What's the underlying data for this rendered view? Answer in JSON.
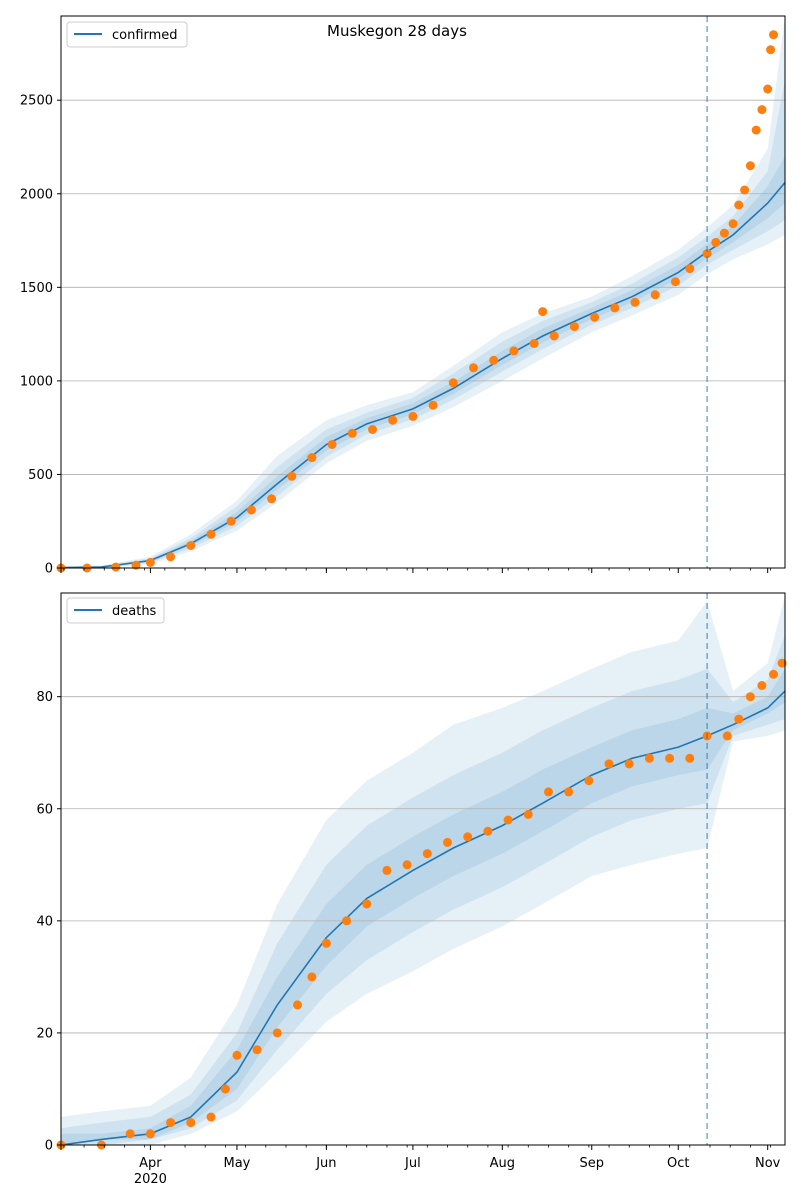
{
  "chart_data": [
    {
      "type": "line",
      "title": "Muskegon 28 days",
      "legend": {
        "label": "confirmed",
        "placement": "top-left"
      },
      "x_type": "date",
      "xlim": [
        "2020-03-01",
        "2020-11-07"
      ],
      "ylim": [
        0,
        2950
      ],
      "yticks": [
        0,
        500,
        1000,
        1500,
        2000,
        2500
      ],
      "xticks": [
        "",
        "",
        "",
        "",
        "",
        "",
        "",
        "",
        ""
      ],
      "grid": "y",
      "forecast_start": "2020-10-11",
      "colors": {
        "model": "#1f77b4",
        "observed": "#ff7f0e",
        "band": "#1f77b4",
        "forecast_line": "#1f77b4"
      },
      "model": {
        "x": [
          "2020-03-01",
          "2020-03-15",
          "2020-04-01",
          "2020-04-15",
          "2020-05-01",
          "2020-05-15",
          "2020-06-01",
          "2020-06-15",
          "2020-07-01",
          "2020-07-15",
          "2020-08-01",
          "2020-08-15",
          "2020-09-01",
          "2020-09-15",
          "2020-10-01",
          "2020-10-11",
          "2020-10-20",
          "2020-11-01",
          "2020-11-07"
        ],
        "y": [
          2,
          5,
          40,
          130,
          270,
          450,
          660,
          770,
          850,
          960,
          1120,
          1240,
          1360,
          1450,
          1580,
          1690,
          1780,
          1950,
          2060
        ]
      },
      "bands": [
        {
          "lower": [
            0,
            0,
            20,
            90,
            200,
            350,
            560,
            680,
            760,
            860,
            1000,
            1120,
            1260,
            1350,
            1460,
            1570,
            1650,
            1730,
            1780
          ],
          "upper": [
            6,
            14,
            60,
            180,
            360,
            600,
            790,
            870,
            940,
            1080,
            1260,
            1360,
            1450,
            1560,
            1700,
            1820,
            1940,
            2240,
            2950
          ]
        },
        {
          "lower": [
            0,
            2,
            28,
            105,
            225,
            385,
            595,
            715,
            795,
            900,
            1050,
            1170,
            1300,
            1390,
            1510,
            1620,
            1700,
            1800,
            1860
          ],
          "upper": [
            4,
            10,
            52,
            160,
            330,
            540,
            740,
            830,
            910,
            1040,
            1210,
            1320,
            1420,
            1520,
            1660,
            1770,
            1880,
            2120,
            2610
          ]
        },
        {
          "lower": [
            1,
            3,
            34,
            118,
            248,
            418,
            628,
            742,
            822,
            930,
            1085,
            1205,
            1330,
            1420,
            1545,
            1655,
            1740,
            1870,
            1950
          ],
          "upper": [
            3,
            7,
            46,
            145,
            300,
            490,
            700,
            800,
            880,
            995,
            1160,
            1280,
            1390,
            1485,
            1620,
            1730,
            1830,
            2040,
            2200
          ]
        }
      ],
      "observed": {
        "x": [
          "2020-03-01",
          "2020-03-10",
          "2020-03-20",
          "2020-03-27",
          "2020-04-01",
          "2020-04-08",
          "2020-04-15",
          "2020-04-22",
          "2020-04-29",
          "2020-05-06",
          "2020-05-13",
          "2020-05-20",
          "2020-05-27",
          "2020-06-03",
          "2020-06-10",
          "2020-06-17",
          "2020-06-24",
          "2020-07-01",
          "2020-07-08",
          "2020-07-15",
          "2020-07-22",
          "2020-07-29",
          "2020-08-05",
          "2020-08-12",
          "2020-08-15",
          "2020-08-19",
          "2020-08-26",
          "2020-09-02",
          "2020-09-09",
          "2020-09-16",
          "2020-09-23",
          "2020-09-30",
          "2020-10-05",
          "2020-10-11",
          "2020-10-14",
          "2020-10-17",
          "2020-10-20",
          "2020-10-22",
          "2020-10-24",
          "2020-10-26",
          "2020-10-28",
          "2020-10-30",
          "2020-11-01",
          "2020-11-02",
          "2020-11-03"
        ],
        "y": [
          0,
          0,
          5,
          15,
          30,
          60,
          120,
          180,
          250,
          310,
          370,
          490,
          590,
          660,
          720,
          740,
          790,
          810,
          870,
          990,
          1070,
          1110,
          1160,
          1200,
          1370,
          1240,
          1290,
          1340,
          1390,
          1420,
          1460,
          1530,
          1600,
          1680,
          1740,
          1790,
          1840,
          1940,
          2020,
          2150,
          2340,
          2450,
          2560,
          2770,
          2850
        ]
      }
    },
    {
      "type": "line",
      "title": "",
      "legend": {
        "label": "deaths",
        "placement": "top-left"
      },
      "x_type": "date",
      "xlim": [
        "2020-03-01",
        "2020-11-07"
      ],
      "ylim": [
        0,
        98.5
      ],
      "yticks": [
        0,
        20,
        40,
        60,
        80
      ],
      "xticks": [
        "Apr\n2020",
        "May",
        "Jun",
        "Jul",
        "Aug",
        "Sep",
        "Oct",
        "Nov"
      ],
      "xtick_dates": [
        "2020-04-01",
        "2020-05-01",
        "2020-06-01",
        "2020-07-01",
        "2020-08-01",
        "2020-09-01",
        "2020-10-01",
        "2020-11-01"
      ],
      "grid": "y",
      "forecast_start": "2020-10-11",
      "colors": {
        "model": "#1f77b4",
        "observed": "#ff7f0e",
        "band": "#1f77b4",
        "forecast_line": "#1f77b4"
      },
      "model": {
        "x": [
          "2020-03-01",
          "2020-03-15",
          "2020-04-01",
          "2020-04-15",
          "2020-05-01",
          "2020-05-15",
          "2020-06-01",
          "2020-06-15",
          "2020-07-01",
          "2020-07-15",
          "2020-08-01",
          "2020-08-15",
          "2020-09-01",
          "2020-09-15",
          "2020-10-01",
          "2020-10-11",
          "2020-10-20",
          "2020-11-01",
          "2020-11-07"
        ],
        "y": [
          0,
          1,
          2,
          5,
          13,
          25,
          37,
          44,
          49,
          53,
          57,
          61,
          66,
          69,
          71,
          73,
          75,
          78,
          81
        ]
      },
      "bands": [
        {
          "lower": [
            0,
            0,
            0,
            2,
            6,
            13,
            22,
            27,
            31,
            35,
            39,
            43,
            48,
            50,
            52,
            53,
            72,
            73,
            74
          ],
          "upper": [
            5,
            6,
            7,
            12,
            25,
            43,
            58,
            65,
            70,
            75,
            78,
            81,
            85,
            88,
            90,
            97,
            81,
            86,
            98
          ]
        },
        {
          "lower": [
            0,
            0,
            1,
            3,
            8,
            17,
            27,
            33,
            38,
            42,
            46,
            50,
            55,
            58,
            60,
            61,
            73,
            75,
            76
          ],
          "upper": [
            3,
            4,
            5,
            9,
            20,
            36,
            50,
            57,
            62,
            66,
            70,
            74,
            78,
            81,
            83,
            85,
            79,
            83,
            91
          ]
        },
        {
          "lower": [
            0,
            1,
            1,
            4,
            10,
            21,
            32,
            39,
            44,
            48,
            52,
            56,
            61,
            64,
            66,
            67,
            74,
            77,
            79
          ],
          "upper": [
            2,
            2,
            3,
            7,
            17,
            30,
            43,
            50,
            55,
            59,
            63,
            67,
            71,
            74,
            76,
            78,
            77,
            80,
            85
          ]
        }
      ],
      "observed": {
        "x": [
          "2020-03-01",
          "2020-03-15",
          "2020-03-25",
          "2020-04-01",
          "2020-04-08",
          "2020-04-15",
          "2020-04-22",
          "2020-04-27",
          "2020-05-01",
          "2020-05-08",
          "2020-05-15",
          "2020-05-22",
          "2020-05-27",
          "2020-06-01",
          "2020-06-08",
          "2020-06-15",
          "2020-06-22",
          "2020-06-29",
          "2020-07-06",
          "2020-07-13",
          "2020-07-20",
          "2020-07-27",
          "2020-08-03",
          "2020-08-10",
          "2020-08-17",
          "2020-08-24",
          "2020-08-31",
          "2020-09-07",
          "2020-09-14",
          "2020-09-21",
          "2020-09-28",
          "2020-10-05",
          "2020-10-11",
          "2020-10-18",
          "2020-10-22",
          "2020-10-26",
          "2020-10-30",
          "2020-11-03",
          "2020-11-06"
        ],
        "y": [
          0,
          0,
          2,
          2,
          4,
          4,
          5,
          10,
          16,
          17,
          20,
          25,
          30,
          36,
          40,
          43,
          49,
          50,
          52,
          54,
          55,
          56,
          58,
          59,
          63,
          63,
          65,
          68,
          68,
          69,
          69,
          69,
          73,
          73,
          76,
          80,
          82,
          84,
          86
        ]
      }
    }
  ]
}
